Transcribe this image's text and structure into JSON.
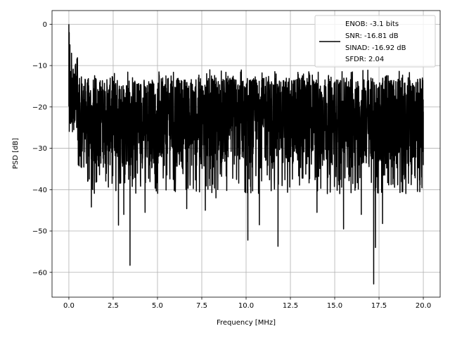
{
  "chart_data": {
    "type": "line",
    "xlabel": "Frequency [MHz]",
    "ylabel": "PSD [dB]",
    "xlim": [
      -0.95,
      20.95
    ],
    "ylim": [
      -66,
      3.3
    ],
    "xticks": [
      0.0,
      2.5,
      5.0,
      7.5,
      10.0,
      12.5,
      15.0,
      17.5,
      20.0
    ],
    "xtick_labels": [
      "0.0",
      "2.5",
      "5.0",
      "7.5",
      "10.0",
      "12.5",
      "15.0",
      "17.5",
      "20.0"
    ],
    "yticks": [
      0,
      -10,
      -20,
      -30,
      -40,
      -50,
      -60
    ],
    "ytick_labels": [
      "0",
      "−10",
      "−20",
      "−30",
      "−40",
      "−50",
      "−60"
    ],
    "grid": true,
    "legend_location": "top-right",
    "legend_lines": [
      "ENOB: -3.1 bits",
      "SNR: -16.81 dB",
      "SINAD: -16.92 dB",
      "SFDR: 2.04"
    ],
    "series": [
      {
        "color": "#000000",
        "noise_floor_band_db": [
          -35,
          -13
        ],
        "points": [
          [
            0.0,
            0.0
          ],
          [
            0.02,
            -2.0
          ],
          [
            0.04,
            -8.0
          ],
          [
            0.06,
            -5.0
          ],
          [
            0.08,
            -13.0
          ],
          [
            0.1,
            -24.0
          ],
          [
            0.15,
            -7.0
          ],
          [
            0.2,
            -26.0
          ],
          [
            0.25,
            -13.0
          ],
          [
            0.3,
            -22.0
          ],
          [
            0.5,
            -28.0
          ],
          [
            1.27,
            -44.2
          ],
          [
            2.23,
            -39.4
          ],
          [
            2.8,
            -48.6
          ],
          [
            3.1,
            -46.0
          ],
          [
            3.45,
            -58.3
          ],
          [
            4.3,
            -45.5
          ],
          [
            6.65,
            -44.6
          ],
          [
            7.7,
            -45.0
          ],
          [
            8.3,
            -42.0
          ],
          [
            10.1,
            -52.2
          ],
          [
            10.75,
            -48.5
          ],
          [
            11.8,
            -53.7
          ],
          [
            14.0,
            -45.5
          ],
          [
            15.5,
            -49.5
          ],
          [
            16.5,
            -46.0
          ],
          [
            17.2,
            -62.8
          ],
          [
            17.3,
            -54.0
          ],
          [
            17.7,
            -48.2
          ],
          [
            19.8,
            -40.5
          ],
          [
            20.0,
            -34.0
          ]
        ]
      }
    ]
  }
}
